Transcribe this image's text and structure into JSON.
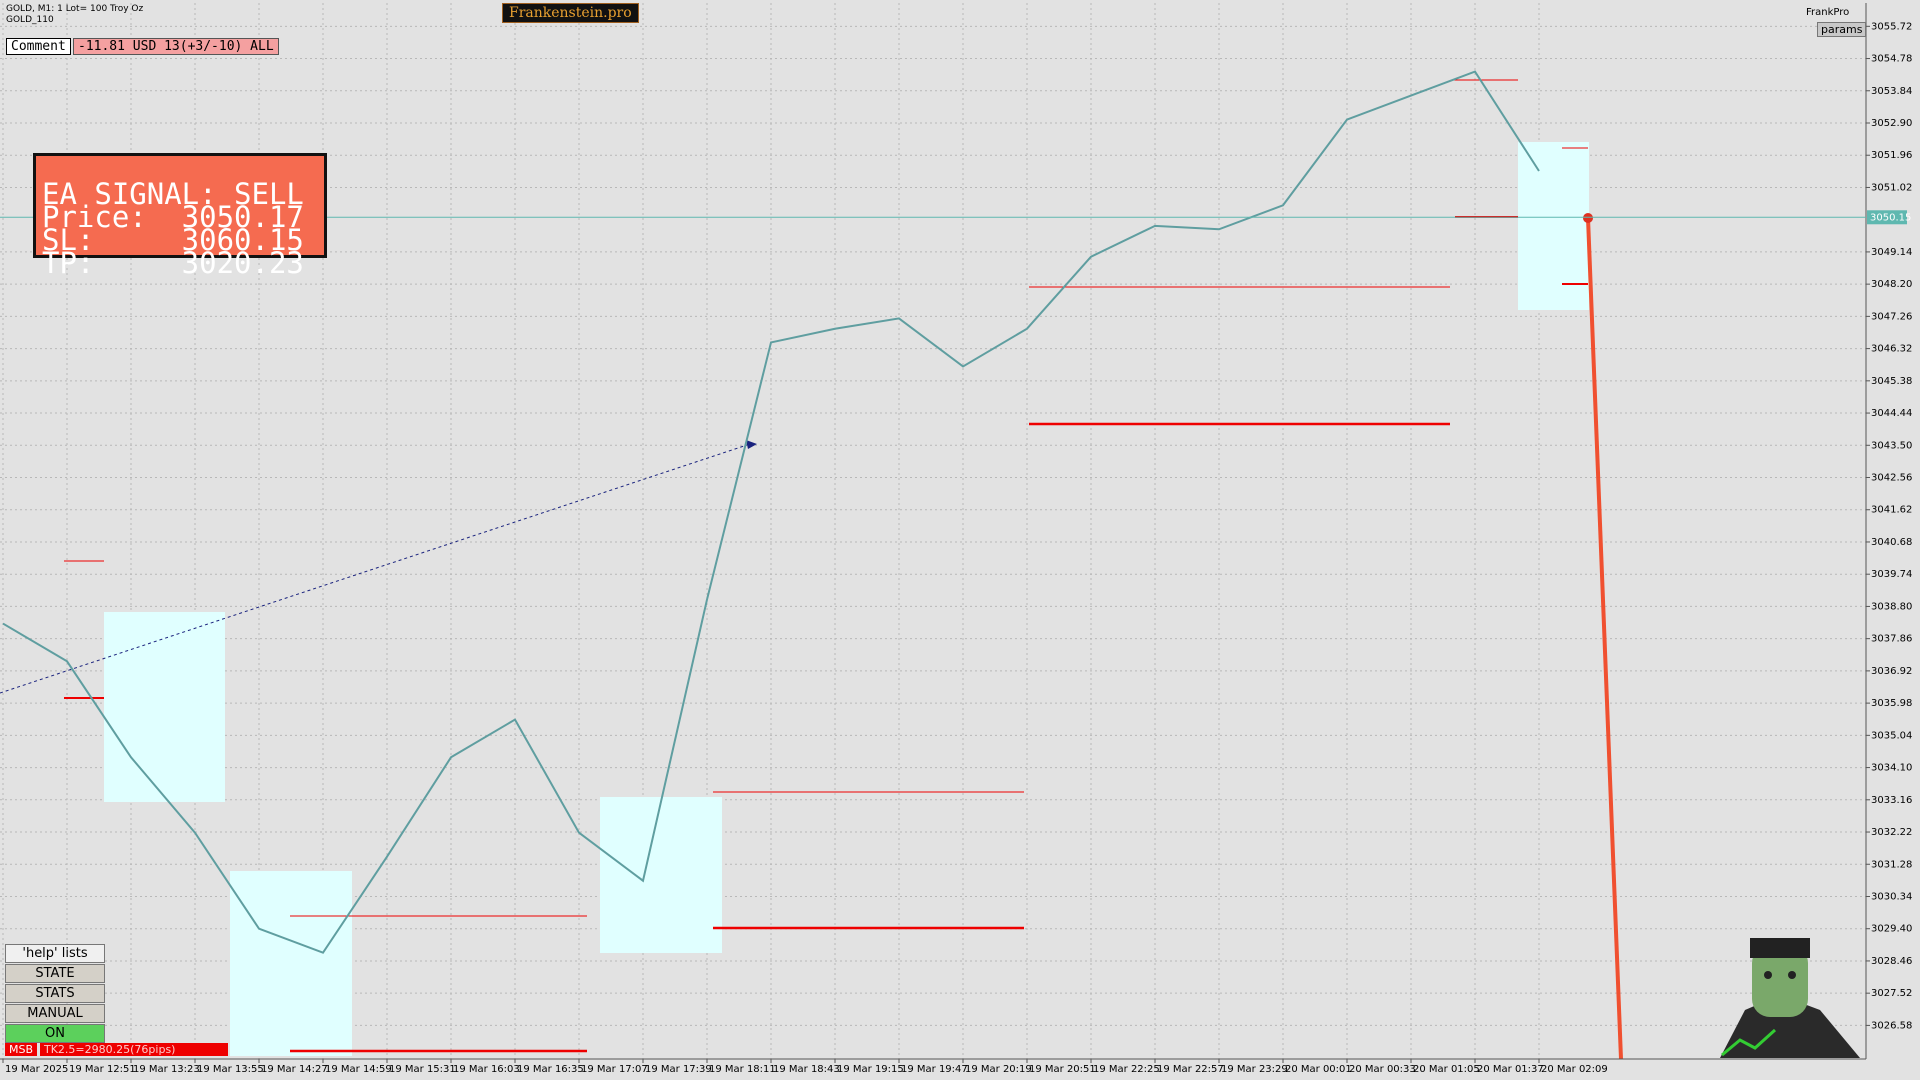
{
  "header": {
    "symbol": "GOLD, M1:  1 Lot= 100 Troy Oz",
    "template": "GOLD_110",
    "brand": "Frankenstein.pro",
    "user": "FrankPro",
    "params": "params"
  },
  "comment": {
    "label": "Comment",
    "result": "-11.81 USD 13(+3/-10) ALL"
  },
  "signal": {
    "lines": [
      "EA SIGNAL: SELL",
      "Price:  3050.17",
      "SL:     3060.15",
      "TP:     3020.23"
    ]
  },
  "buttons": [
    "'help' lists cmds",
    "STATE",
    "STATS",
    "MANUAL",
    "ON"
  ],
  "status": {
    "tag": "MSB",
    "text": "TK2.5=2980.25(76pips)"
  },
  "chart_data": {
    "type": "line",
    "color": "#5f9ea0",
    "categories": [
      "19 Mar 2025",
      "19 Mar 12:51",
      "19 Mar 13:23",
      "19 Mar 13:55",
      "19 Mar 14:27",
      "19 Mar 14:59",
      "19 Mar 15:31",
      "19 Mar 16:03",
      "19 Mar 16:35",
      "19 Mar 17:07",
      "19 Mar 17:39",
      "19 Mar 18:11",
      "19 Mar 18:43",
      "19 Mar 19:15",
      "19 Mar 19:47",
      "19 Mar 20:19",
      "19 Mar 20:51",
      "19 Mar 22:25",
      "19 Mar 22:57",
      "19 Mar 23:29",
      "20 Mar 00:01",
      "20 Mar 00:33",
      "20 Mar 01:05",
      "20 Mar 01:37",
      "20 Mar 02:09"
    ],
    "values": [
      3038.3,
      3037.2,
      3034.4,
      3032.2,
      3029.4,
      3028.7,
      3031.5,
      3034.4,
      3035.5,
      3032.2,
      3030.8,
      3039.0,
      3046.5,
      3046.9,
      3047.2,
      3045.8,
      3046.9,
      3049.0,
      3049.9,
      3049.8,
      3050.5,
      3053.0,
      3053.7,
      3054.4,
      3051.5
    ],
    "last_price": 3050.15,
    "ylim": [
      3025.6,
      3056.4
    ],
    "yticks": [
      {
        "value": 3055.72,
        "label": "3055.72"
      },
      {
        "value": 3054.78,
        "label": "3054.78"
      },
      {
        "value": 3053.84,
        "label": "3053.84"
      },
      {
        "value": 3052.9,
        "label": "3052.90"
      },
      {
        "value": 3051.96,
        "label": "3051.96"
      },
      {
        "value": 3051.02,
        "label": "3051.02"
      },
      {
        "value": 3049.14,
        "label": "3049.14"
      },
      {
        "value": 3048.2,
        "label": "3048.20"
      },
      {
        "value": 3047.26,
        "label": "3047.26"
      },
      {
        "value": 3046.32,
        "label": "3046.32"
      },
      {
        "value": 3045.38,
        "label": "3045.38"
      },
      {
        "value": 3044.44,
        "label": "3044.44"
      },
      {
        "value": 3043.5,
        "label": "3043.50"
      },
      {
        "value": 3042.56,
        "label": "3042.56"
      },
      {
        "value": 3041.62,
        "label": "3041.62"
      },
      {
        "value": 3040.68,
        "label": "3040.68"
      },
      {
        "value": 3039.74,
        "label": "3039.74"
      },
      {
        "value": 3038.8,
        "label": "3038.80"
      },
      {
        "value": 3037.86,
        "label": "3037.86"
      },
      {
        "value": 3036.92,
        "label": "3036.92"
      },
      {
        "value": 3035.98,
        "label": "3035.98"
      },
      {
        "value": 3035.04,
        "label": "3035.04"
      },
      {
        "value": 3034.1,
        "label": "3034.10"
      },
      {
        "value": 3033.16,
        "label": "3033.16"
      },
      {
        "value": 3032.22,
        "label": "3032.22"
      },
      {
        "value": 3031.28,
        "label": "3031.28"
      },
      {
        "value": 3030.34,
        "label": "3030.34"
      },
      {
        "value": 3029.4,
        "label": "3029.40"
      },
      {
        "value": 3028.46,
        "label": "3028.46"
      },
      {
        "value": 3027.52,
        "label": "3027.52"
      },
      {
        "value": 3026.58,
        "label": "3026.58"
      }
    ],
    "grid": true
  }
}
